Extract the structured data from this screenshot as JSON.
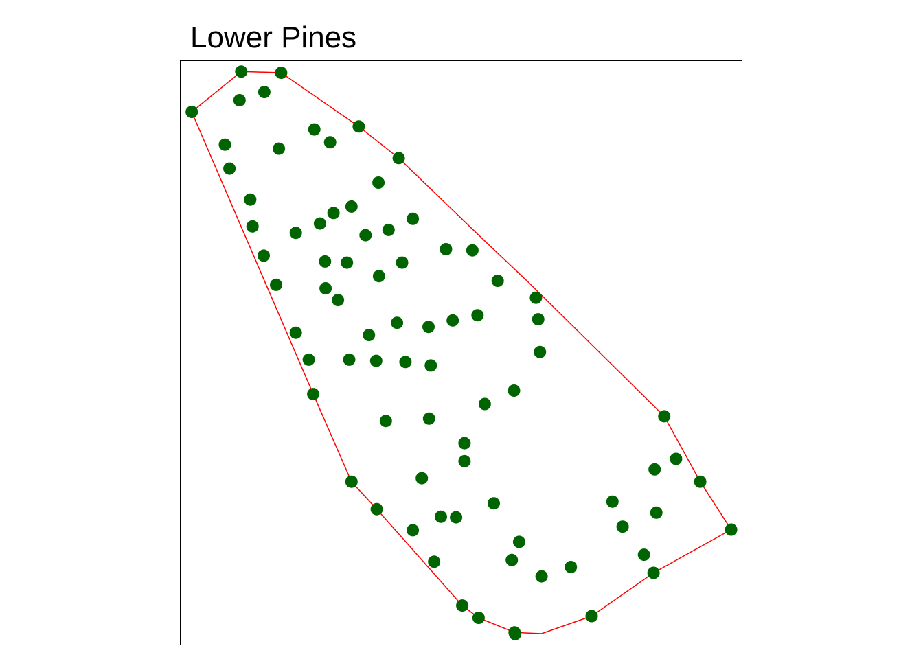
{
  "chart_data": {
    "type": "scatter",
    "title": "Lower Pines",
    "xlim": [
      0,
      1
    ],
    "ylim": [
      0,
      1
    ],
    "grid": false,
    "axes_visible": false,
    "point_color": "#006400",
    "hull_color": "#FF0000",
    "frame_color": "#000000",
    "points": [
      [
        0.109,
        0.982
      ],
      [
        0.18,
        0.98
      ],
      [
        0.021,
        0.913
      ],
      [
        0.106,
        0.933
      ],
      [
        0.15,
        0.947
      ],
      [
        0.239,
        0.883
      ],
      [
        0.267,
        0.861
      ],
      [
        0.318,
        0.888
      ],
      [
        0.08,
        0.857
      ],
      [
        0.088,
        0.816
      ],
      [
        0.176,
        0.85
      ],
      [
        0.389,
        0.834
      ],
      [
        0.353,
        0.792
      ],
      [
        0.305,
        0.751
      ],
      [
        0.273,
        0.74
      ],
      [
        0.249,
        0.722
      ],
      [
        0.125,
        0.763
      ],
      [
        0.129,
        0.717
      ],
      [
        0.206,
        0.706
      ],
      [
        0.371,
        0.711
      ],
      [
        0.414,
        0.73
      ],
      [
        0.33,
        0.702
      ],
      [
        0.52,
        0.676
      ],
      [
        0.149,
        0.667
      ],
      [
        0.258,
        0.657
      ],
      [
        0.297,
        0.655
      ],
      [
        0.395,
        0.655
      ],
      [
        0.473,
        0.678
      ],
      [
        0.171,
        0.617
      ],
      [
        0.259,
        0.611
      ],
      [
        0.354,
        0.632
      ],
      [
        0.281,
        0.591
      ],
      [
        0.565,
        0.624
      ],
      [
        0.633,
        0.595
      ],
      [
        0.529,
        0.565
      ],
      [
        0.485,
        0.556
      ],
      [
        0.442,
        0.545
      ],
      [
        0.386,
        0.552
      ],
      [
        0.637,
        0.558
      ],
      [
        0.206,
        0.535
      ],
      [
        0.336,
        0.531
      ],
      [
        0.229,
        0.489
      ],
      [
        0.349,
        0.487
      ],
      [
        0.446,
        0.479
      ],
      [
        0.401,
        0.485
      ],
      [
        0.64,
        0.502
      ],
      [
        0.301,
        0.489
      ],
      [
        0.237,
        0.43
      ],
      [
        0.594,
        0.436
      ],
      [
        0.542,
        0.413
      ],
      [
        0.366,
        0.384
      ],
      [
        0.443,
        0.388
      ],
      [
        0.861,
        0.392
      ],
      [
        0.506,
        0.346
      ],
      [
        0.506,
        0.315
      ],
      [
        0.882,
        0.319
      ],
      [
        0.844,
        0.301
      ],
      [
        0.925,
        0.28
      ],
      [
        0.305,
        0.28
      ],
      [
        0.43,
        0.286
      ],
      [
        0.769,
        0.246
      ],
      [
        0.558,
        0.243
      ],
      [
        0.35,
        0.233
      ],
      [
        0.491,
        0.219
      ],
      [
        0.464,
        0.22
      ],
      [
        0.847,
        0.227
      ],
      [
        0.787,
        0.203
      ],
      [
        0.414,
        0.197
      ],
      [
        0.98,
        0.198
      ],
      [
        0.603,
        0.177
      ],
      [
        0.825,
        0.155
      ],
      [
        0.59,
        0.146
      ],
      [
        0.695,
        0.134
      ],
      [
        0.643,
        0.118
      ],
      [
        0.452,
        0.143
      ],
      [
        0.842,
        0.124
      ],
      [
        0.502,
        0.068
      ],
      [
        0.531,
        0.047
      ],
      [
        0.732,
        0.05
      ],
      [
        0.595,
        0.022
      ],
      [
        0.596,
        0.019
      ]
    ],
    "hull": [
      [
        0.021,
        0.913
      ],
      [
        0.109,
        0.982
      ],
      [
        0.18,
        0.98
      ],
      [
        0.318,
        0.888
      ],
      [
        0.389,
        0.834
      ],
      [
        0.542,
        0.692
      ],
      [
        0.62,
        0.621
      ],
      [
        0.861,
        0.392
      ],
      [
        0.925,
        0.28
      ],
      [
        0.98,
        0.198
      ],
      [
        0.842,
        0.124
      ],
      [
        0.732,
        0.05
      ],
      [
        0.643,
        0.02
      ],
      [
        0.595,
        0.022
      ],
      [
        0.531,
        0.047
      ],
      [
        0.502,
        0.068
      ],
      [
        0.35,
        0.233
      ],
      [
        0.305,
        0.28
      ],
      [
        0.237,
        0.43
      ],
      [
        0.021,
        0.913
      ]
    ]
  }
}
